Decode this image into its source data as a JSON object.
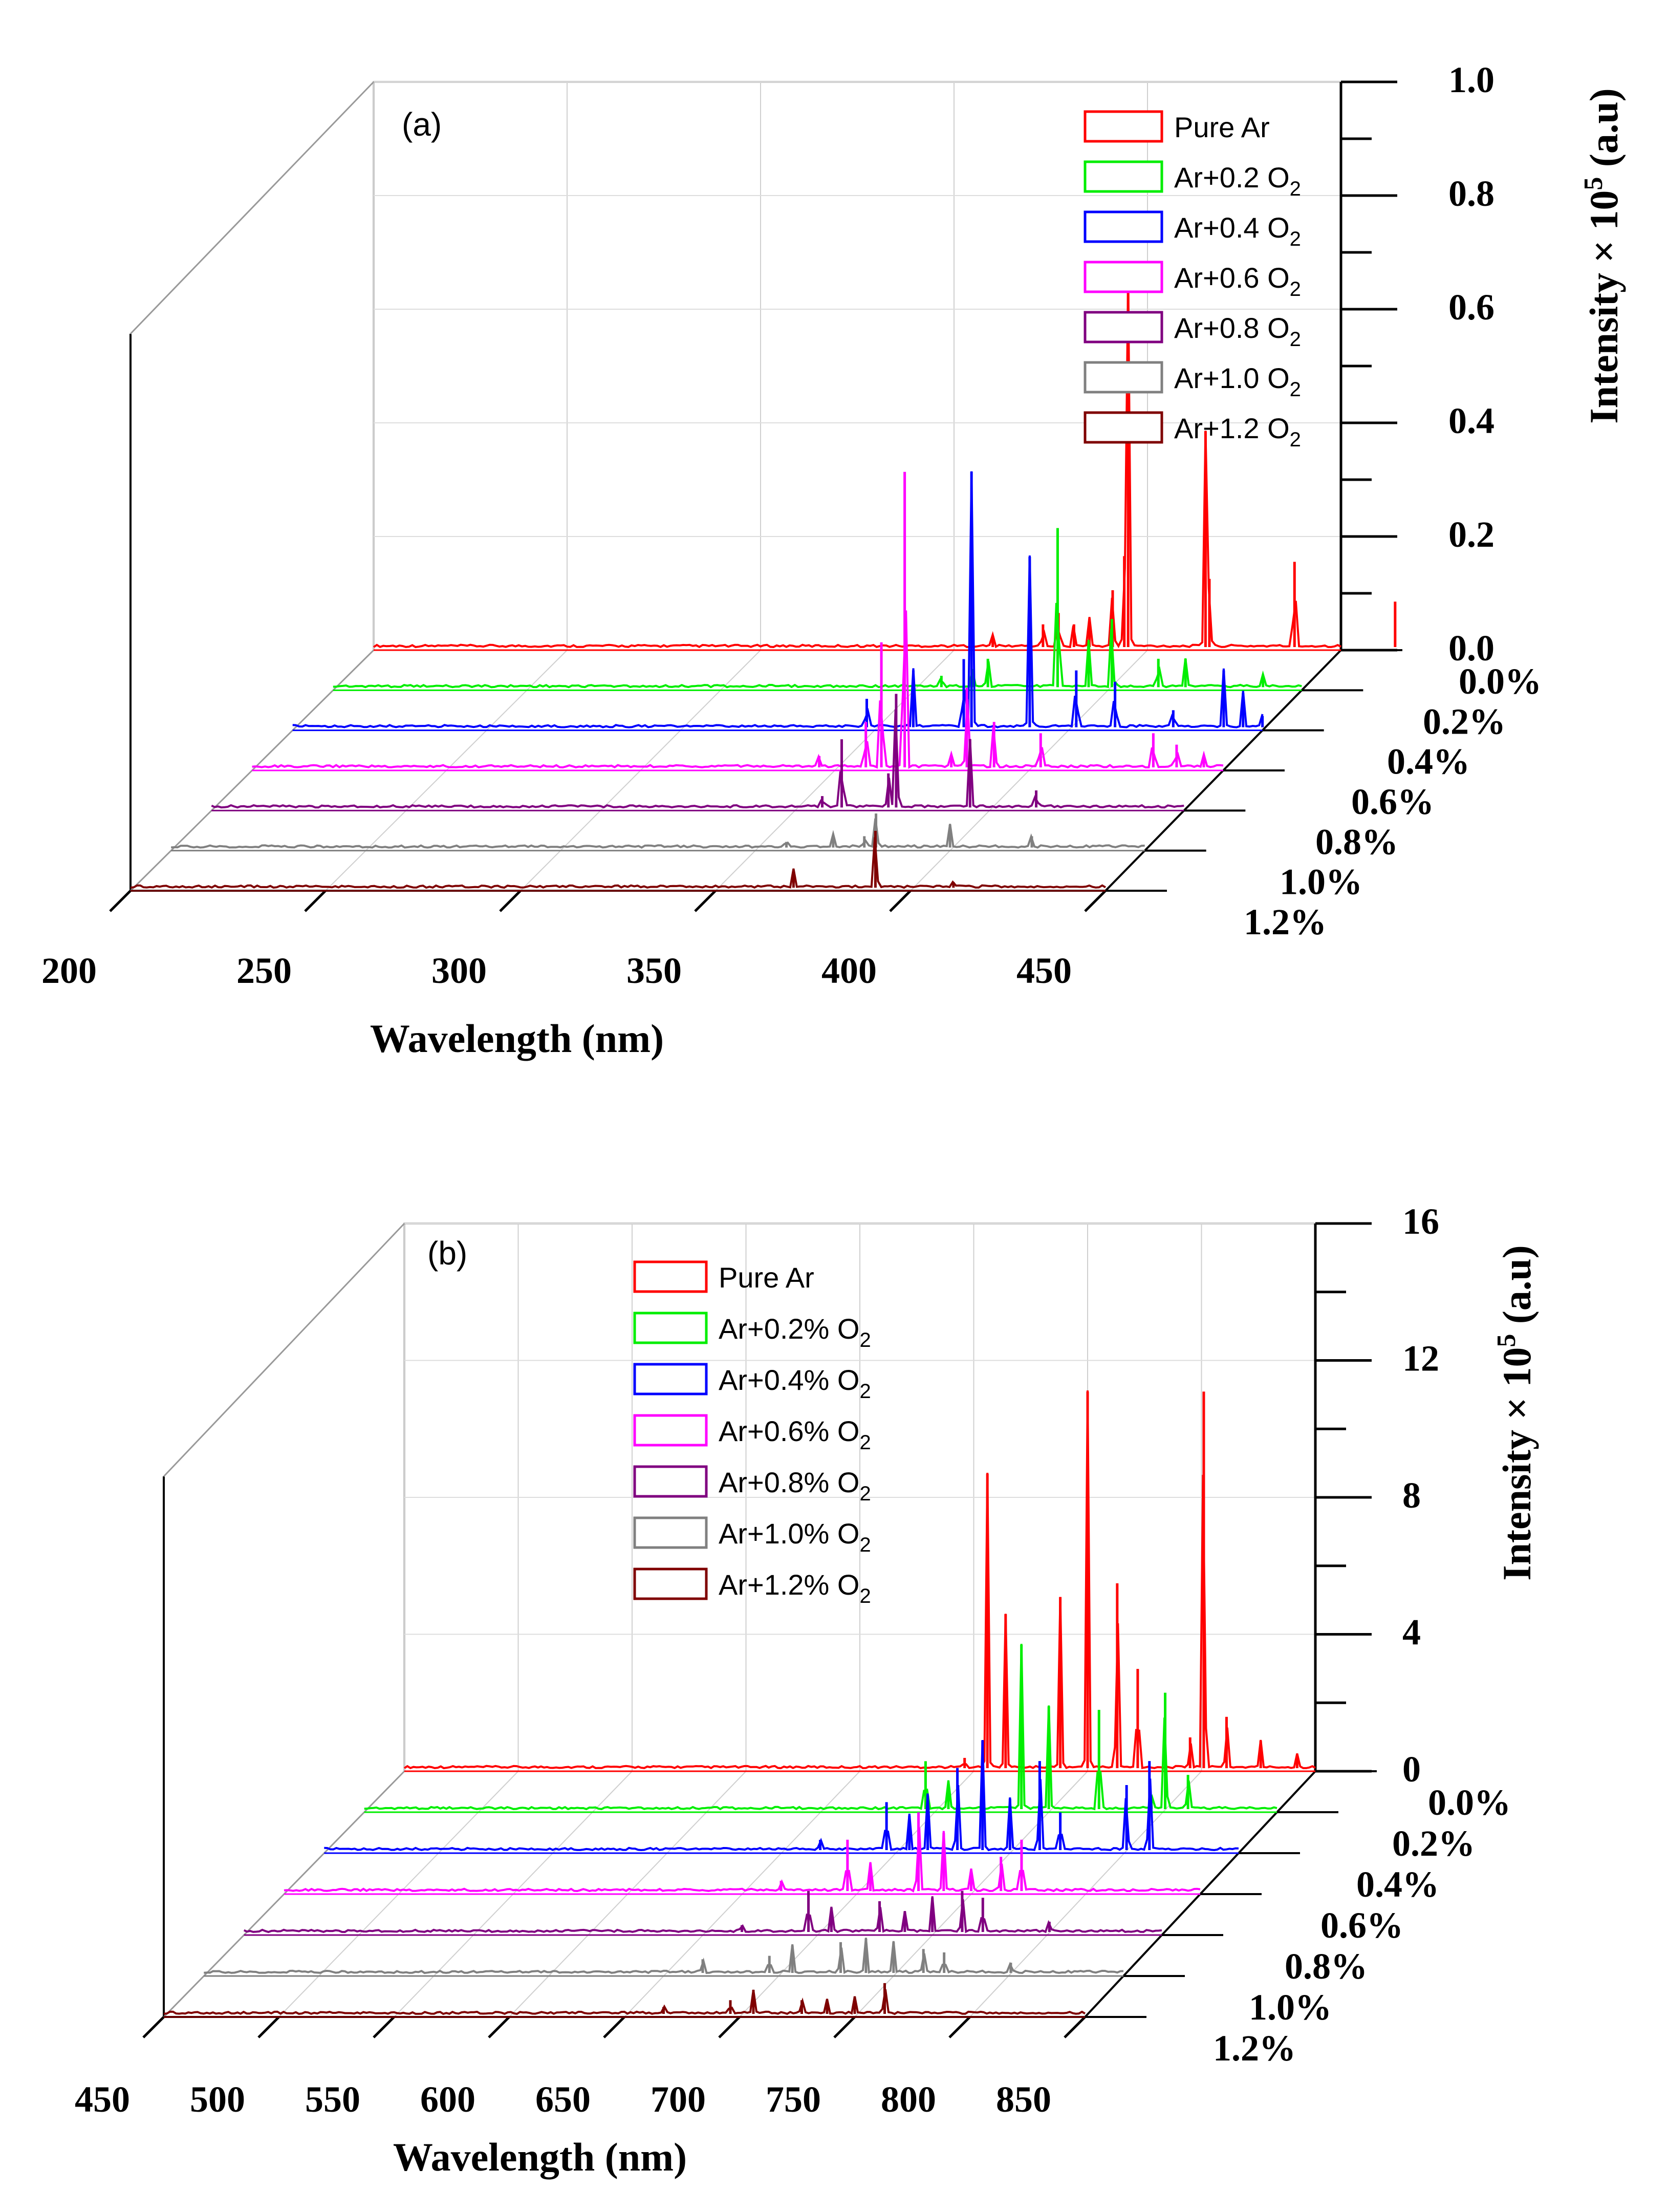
{
  "chart_data": [
    {
      "panel": "(a)",
      "type": "line",
      "variant": "3d-waterfall",
      "xlabel": "Wavelength (nm)",
      "ylabel": "Intensity × 10",
      "ylabel_exp": "5",
      "ylabel_unit": "(a.u)",
      "xlim": [
        200,
        450
      ],
      "x_ticks": [
        "200",
        "250",
        "300",
        "350",
        "400",
        "450"
      ],
      "ylim": [
        0,
        1.0
      ],
      "y_ticks": [
        "0.0",
        "0.2",
        "0.4",
        "0.6",
        "0.8",
        "1.0"
      ],
      "z_ticks": [
        "0.0%",
        "0.2%",
        "0.4%",
        "0.6%",
        "0.8%",
        "1.0%",
        "1.2%"
      ],
      "series": [
        {
          "name": "Pure Ar",
          "legend_main": "Pure Ar",
          "legend_sub": "",
          "color": "#ff0000",
          "peaks": [
            [
              360,
              0.02
            ],
            [
              373,
              0.04
            ],
            [
              377,
              0.06
            ],
            [
              381,
              0.04
            ],
            [
              385,
              0.05
            ],
            [
              391,
              0.1
            ],
            [
              394,
              0.16
            ],
            [
              395,
              0.65
            ],
            [
              415,
              0.38
            ],
            [
              416,
              0.12
            ],
            [
              438,
              0.15
            ],
            [
              464,
              0.08
            ]
          ]
        },
        {
          "name": "Ar+0.2 O2",
          "legend_main": "Ar+0.2 O",
          "legend_sub": "2",
          "color": "#00ee00",
          "peaks": [
            [
              357,
              0.02
            ],
            [
              365,
              0.03
            ],
            [
              369,
              0.05
            ],
            [
              387,
              0.28
            ],
            [
              395,
              0.08
            ],
            [
              401,
              0.12
            ],
            [
              413,
              0.05
            ],
            [
              420,
              0.05
            ],
            [
              440,
              0.02
            ]
          ]
        },
        {
          "name": "Ar+0.4 O2",
          "legend_main": "Ar+0.4 O",
          "legend_sub": "2",
          "color": "#0000ff",
          "peaks": [
            [
              348,
              0.05
            ],
            [
              360,
              0.1
            ],
            [
              373,
              0.12
            ],
            [
              375,
              0.45
            ],
            [
              390,
              0.3
            ],
            [
              402,
              0.1
            ],
            [
              412,
              0.08
            ],
            [
              427,
              0.03
            ],
            [
              440,
              0.1
            ],
            [
              445,
              0.06
            ],
            [
              450,
              0.02
            ]
          ]
        },
        {
          "name": "Ar+0.6 O2",
          "legend_main": "Ar+0.6 O",
          "legend_sub": "2",
          "color": "#ff00ff",
          "peaks": [
            [
              346,
              0.02
            ],
            [
              358,
              0.08
            ],
            [
              362,
              0.22
            ],
            [
              368,
              0.52
            ],
            [
              380,
              0.02
            ],
            [
              384,
              0.14
            ],
            [
              391,
              0.08
            ],
            [
              403,
              0.06
            ],
            [
              432,
              0.06
            ],
            [
              438,
              0.04
            ],
            [
              445,
              0.02
            ]
          ]
        },
        {
          "name": "Ar+0.8 O2",
          "legend_main": "Ar+0.8 O",
          "legend_sub": "2",
          "color": "#800080",
          "peaks": [
            [
              357,
              0.02
            ],
            [
              362,
              0.12
            ],
            [
              374,
              0.06
            ],
            [
              376,
              0.2
            ],
            [
              395,
              0.12
            ],
            [
              412,
              0.03
            ]
          ]
        },
        {
          "name": "Ar+1.0 O2",
          "legend_main": "Ar+1.0 O",
          "legend_sub": "2",
          "color": "#808080",
          "peaks": [
            [
              358,
              0.01
            ],
            [
              370,
              0.02
            ],
            [
              378,
              0.02
            ],
            [
              381,
              0.06
            ],
            [
              400,
              0.04
            ],
            [
              421,
              0.02
            ]
          ]
        },
        {
          "name": "Ar+1.2 O2",
          "legend_main": "Ar+1.2 O",
          "legend_sub": "2",
          "color": "#7f0000",
          "peaks": [
            [
              370,
              0.03
            ],
            [
              391,
              0.1
            ],
            [
              411,
              0.01
            ]
          ]
        }
      ]
    },
    {
      "panel": "(b)",
      "type": "line",
      "variant": "3d-waterfall",
      "xlabel": "Wavelength (nm)",
      "ylabel": "Intensity × 10",
      "ylabel_exp": "5",
      "ylabel_unit": "(a.u)",
      "xlim": [
        450,
        850
      ],
      "x_ticks": [
        "450",
        "500",
        "550",
        "600",
        "650",
        "700",
        "750",
        "800",
        "850"
      ],
      "ylim": [
        0,
        16
      ],
      "y_ticks": [
        "0",
        "4",
        "8",
        "12",
        "16"
      ],
      "z_ticks": [
        "0.0%",
        "0.2%",
        "0.4%",
        "0.6%",
        "0.8%",
        "1.0%",
        "1.2%"
      ],
      "series": [
        {
          "name": "Pure Ar",
          "legend_main": "Pure Ar",
          "legend_sub": "",
          "color": "#ff0000",
          "peaks": [
            [
              696,
              0.3
            ],
            [
              706,
              8.6
            ],
            [
              714,
              4.5
            ],
            [
              738,
              5.0
            ],
            [
              750,
              11.0
            ],
            [
              763,
              5.4
            ],
            [
              772,
              2.9
            ],
            [
              795,
              0.9
            ],
            [
              801,
              11.0
            ],
            [
              811,
              1.5
            ],
            [
              826,
              0.8
            ],
            [
              842,
              0.4
            ]
          ]
        },
        {
          "name": "Ar+0.2% O2",
          "legend_main": "Ar+0.2% O",
          "legend_sub": "2",
          "color": "#00ee00",
          "peaks": [
            [
              696,
              1.4
            ],
            [
              706,
              0.8
            ],
            [
              738,
              4.8
            ],
            [
              750,
              3.0
            ],
            [
              772,
              2.9
            ],
            [
              795,
              0.4
            ],
            [
              801,
              3.4
            ],
            [
              811,
              1.0
            ]
          ]
        },
        {
          "name": "Ar+0.4% O2",
          "legend_main": "Ar+0.4% O",
          "legend_sub": "2",
          "color": "#0000ff",
          "peaks": [
            [
              667,
              0.3
            ],
            [
              696,
              1.4
            ],
            [
              706,
              1.0
            ],
            [
              714,
              1.6
            ],
            [
              727,
              2.4
            ],
            [
              738,
              3.2
            ],
            [
              750,
              1.5
            ],
            [
              763,
              2.6
            ],
            [
              772,
              1.1
            ],
            [
              801,
              1.9
            ],
            [
              811,
              2.6
            ]
          ]
        },
        {
          "name": "Ar+0.6% O2",
          "legend_main": "Ar+0.6% O",
          "legend_sub": "2",
          "color": "#ff00ff",
          "peaks": [
            [
              667,
              0.3
            ],
            [
              696,
              1.5
            ],
            [
              706,
              0.8
            ],
            [
              727,
              2.3
            ],
            [
              738,
              1.7
            ],
            [
              750,
              0.6
            ],
            [
              763,
              1.0
            ],
            [
              772,
              1.5
            ]
          ]
        },
        {
          "name": "Ar+0.8% O2",
          "legend_main": "Ar+0.8% O",
          "legend_sub": "2",
          "color": "#800080",
          "peaks": [
            [
              667,
              0.2
            ],
            [
              696,
              1.2
            ],
            [
              706,
              0.7
            ],
            [
              727,
              0.9
            ],
            [
              738,
              0.6
            ],
            [
              750,
              1.0
            ],
            [
              763,
              1.2
            ],
            [
              772,
              1.0
            ],
            [
              801,
              0.3
            ]
          ]
        },
        {
          "name": "Ar+1.0% O2",
          "legend_main": "Ar+1.0% O",
          "legend_sub": "2",
          "color": "#808080",
          "peaks": [
            [
              667,
              0.4
            ],
            [
              696,
              0.5
            ],
            [
              706,
              0.8
            ],
            [
              727,
              0.9
            ],
            [
              738,
              1.0
            ],
            [
              750,
              0.9
            ],
            [
              763,
              0.7
            ],
            [
              772,
              0.6
            ],
            [
              801,
              0.3
            ]
          ]
        },
        {
          "name": "Ar+1.2% O2",
          "legend_main": "Ar+1.2% O",
          "legend_sub": "2",
          "color": "#7f0000",
          "peaks": [
            [
              667,
              0.2
            ],
            [
              696,
              0.4
            ],
            [
              706,
              0.7
            ],
            [
              727,
              0.4
            ],
            [
              738,
              0.4
            ],
            [
              750,
              0.5
            ],
            [
              763,
              0.9
            ]
          ]
        }
      ]
    }
  ]
}
